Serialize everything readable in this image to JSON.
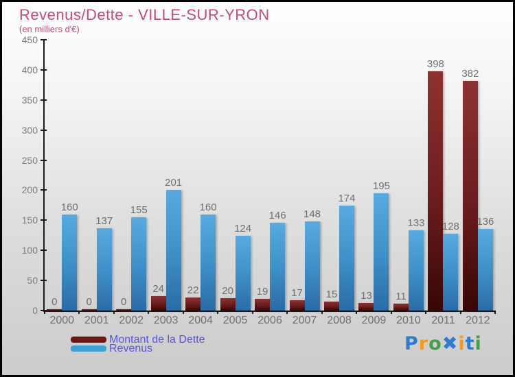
{
  "header": {
    "title": "Revenus/Dette - VILLE-SUR-YRON",
    "subtitle": "(en milliers d'€)"
  },
  "chart_data": {
    "type": "bar",
    "title": "Revenus/Dette - VILLE-SUR-YRON",
    "unit_label": "(en milliers d'€)",
    "categories": [
      "2000",
      "2001",
      "2002",
      "2003",
      "2004",
      "2005",
      "2006",
      "2007",
      "2008",
      "2009",
      "2010",
      "2011",
      "2012"
    ],
    "series": [
      {
        "name": "Montant de la Dette",
        "values": [
          0,
          0,
          0,
          24,
          22,
          20,
          19,
          17,
          15,
          13,
          11,
          398,
          382
        ],
        "color": "#701414"
      },
      {
        "name": "Revenus",
        "values": [
          160,
          137,
          155,
          201,
          160,
          124,
          146,
          148,
          174,
          195,
          133,
          128,
          136
        ],
        "color": "#3e9fd4"
      }
    ],
    "ylim": [
      0,
      450
    ],
    "ytick_step": 50,
    "yticks": [
      0,
      50,
      100,
      150,
      200,
      250,
      300,
      350,
      400,
      450
    ],
    "grid": false,
    "value_labels": true,
    "legend_position": "bottom-left"
  },
  "legend": {
    "items": [
      {
        "label": "Montant de la Dette",
        "color": "#701414"
      },
      {
        "label": "Revenus",
        "color": "#3e9fd4"
      }
    ]
  },
  "logo": {
    "text": "Proxiti",
    "letters": [
      {
        "ch": "P",
        "color": "#2e7ad4"
      },
      {
        "ch": "r",
        "color": "#f59a16"
      },
      {
        "ch": "o",
        "color": "#43a047"
      },
      {
        "ch": "✖",
        "color": "#2e7ad4"
      },
      {
        "ch": "i",
        "color": "#f59a16"
      },
      {
        "ch": "t",
        "color": "#2e7ad4"
      },
      {
        "ch": "i",
        "color": "#43a047"
      }
    ]
  },
  "colors": {
    "title": "#c84a6e",
    "axis": "#1a1a1a",
    "tick_label": "#7d7d7d",
    "value_label": "#6e6e6e",
    "legend_text": "#5a55dd",
    "dette_gradient_top": "#8e3232",
    "dette_gradient_bottom": "#380606",
    "revenus_gradient_top": "#57abe0",
    "revenus_gradient_bottom": "#2b6ba6"
  }
}
